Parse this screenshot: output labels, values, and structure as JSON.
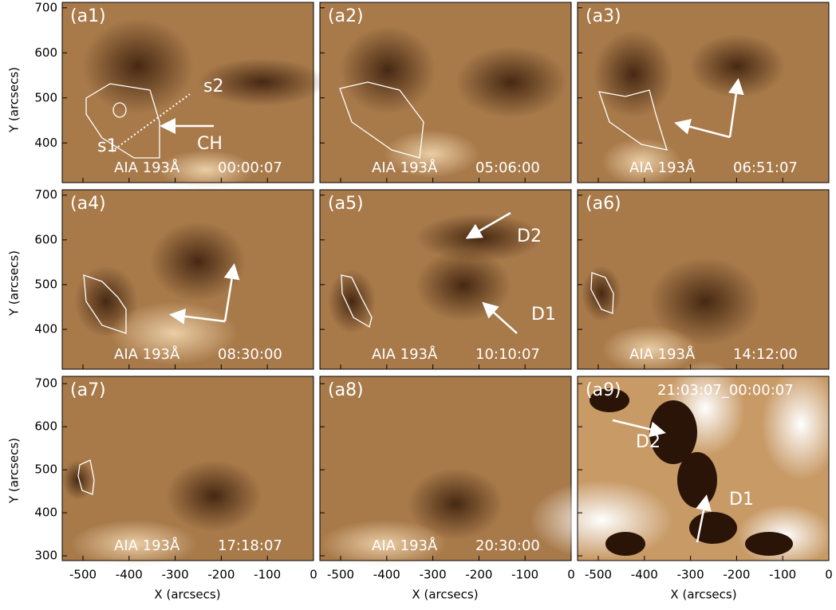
{
  "figure": {
    "y_axis_label": "Y (arcsecs)",
    "x_axis_label": "X (arcsecs)",
    "xlim": [
      -545,
      0
    ],
    "xticks": [
      -500,
      -400,
      -300,
      -200,
      -100,
      0
    ],
    "rows": [
      {
        "ylim": [
          312,
          712
        ],
        "yticks": [
          400,
          500,
          600,
          700
        ]
      },
      {
        "ylim": [
          311,
          712
        ],
        "yticks": [
          400,
          500,
          600,
          700
        ]
      },
      {
        "ylim": [
          289,
          717
        ],
        "yticks": [
          300,
          400,
          500,
          600,
          700
        ]
      }
    ],
    "panels": [
      {
        "label": "(a1)",
        "instrument": "AIA 193Å",
        "time": "00:00:07",
        "annotations": [
          "s1",
          "s2",
          "CH"
        ]
      },
      {
        "label": "(a2)",
        "instrument": "AIA 193Å",
        "time": "05:06:00"
      },
      {
        "label": "(a3)",
        "instrument": "AIA 193Å",
        "time": "06:51:07"
      },
      {
        "label": "(a4)",
        "instrument": "AIA 193Å",
        "time": "08:30:00"
      },
      {
        "label": "(a5)",
        "instrument": "AIA 193Å",
        "time": "10:10:07",
        "annotations": [
          "D2",
          "D1"
        ]
      },
      {
        "label": "(a6)",
        "instrument": "AIA 193Å",
        "time": "14:12:00"
      },
      {
        "label": "(a7)",
        "instrument": "AIA 193Å",
        "time": "17:18:07"
      },
      {
        "label": "(a8)",
        "instrument": "AIA 193Å",
        "time": "20:30:00"
      },
      {
        "label": "(a9)",
        "time": "21:03:07_00:00:07",
        "annotations": [
          "D2",
          "D1"
        ]
      }
    ]
  }
}
